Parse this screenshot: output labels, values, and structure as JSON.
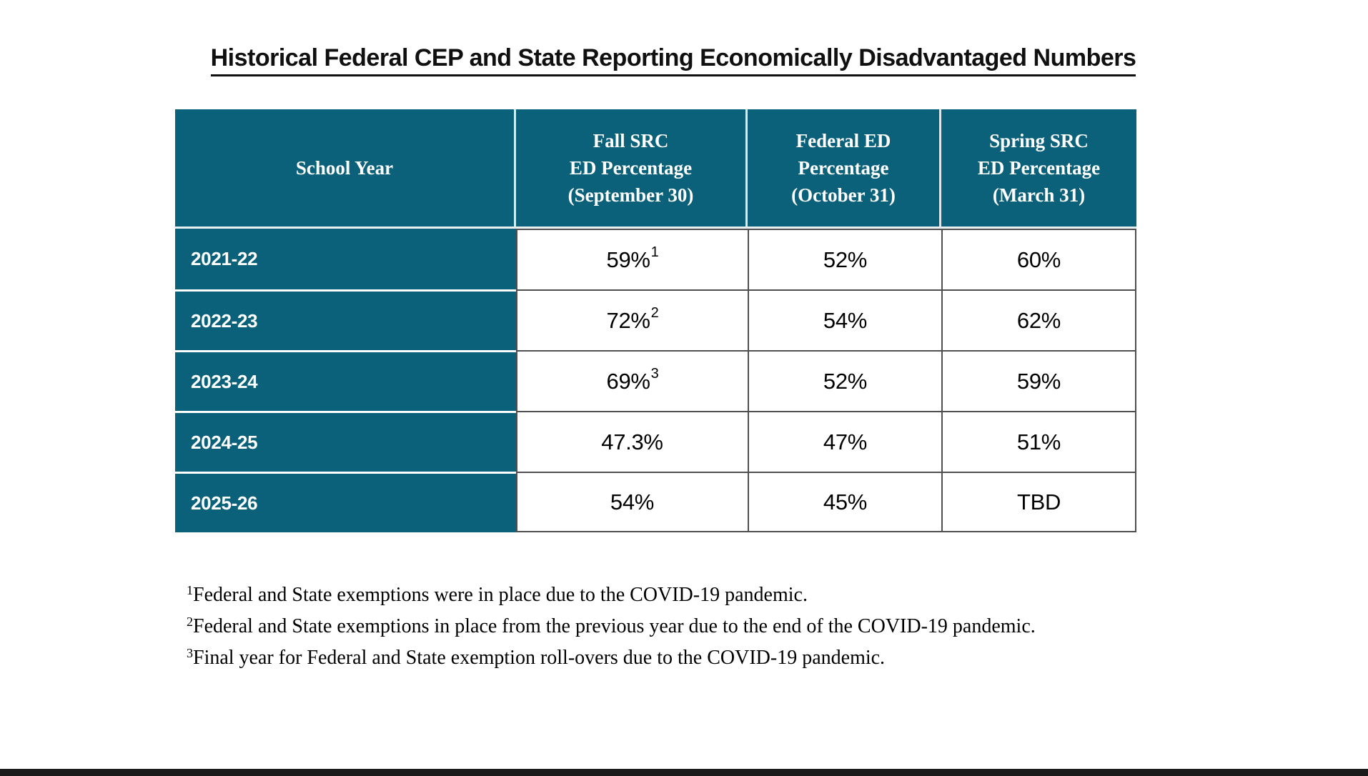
{
  "page": {
    "title": "Historical Federal CEP and State Reporting Economically Disadvantaged Numbers"
  },
  "colors": {
    "header_teal": "#0c617a",
    "data_border": "#4f4f4f",
    "bottom_bar": "#1b1b1b"
  },
  "table": {
    "headers": [
      {
        "lines": [
          "School Year",
          "",
          ""
        ]
      },
      {
        "lines": [
          "Fall SRC",
          "ED Percentage",
          "(September 30)"
        ]
      },
      {
        "lines": [
          "Federal ED",
          "Percentage",
          "(October 31)"
        ]
      },
      {
        "lines": [
          "Spring SRC",
          "ED Percentage",
          "(March 31)"
        ]
      }
    ],
    "rows": [
      {
        "year": "2021-22",
        "fall": "59%",
        "fall_sup": "1",
        "federal": "52%",
        "spring": "60%"
      },
      {
        "year": "2022-23",
        "fall": "72%",
        "fall_sup": "2",
        "federal": "54%",
        "spring": "62%"
      },
      {
        "year": "2023-24",
        "fall": "69%",
        "fall_sup": "3",
        "federal": "52%",
        "spring": "59%"
      },
      {
        "year": "2024-25",
        "fall": "47.3%",
        "fall_sup": "",
        "federal": "47%",
        "spring": "51%"
      },
      {
        "year": "2025-26",
        "fall": "54%",
        "fall_sup": "",
        "federal": "45%",
        "spring": "TBD"
      }
    ]
  },
  "footnotes": [
    {
      "marker": "1",
      "text": "Federal and State exemptions were in place due to the COVID-19 pandemic."
    },
    {
      "marker": "2",
      "text": "Federal and State exemptions in place from the previous year due to the end of the COVID-19 pandemic."
    },
    {
      "marker": "3",
      "text": "Final year for Federal and State exemption roll-overs due to the COVID-19 pandemic."
    }
  ]
}
